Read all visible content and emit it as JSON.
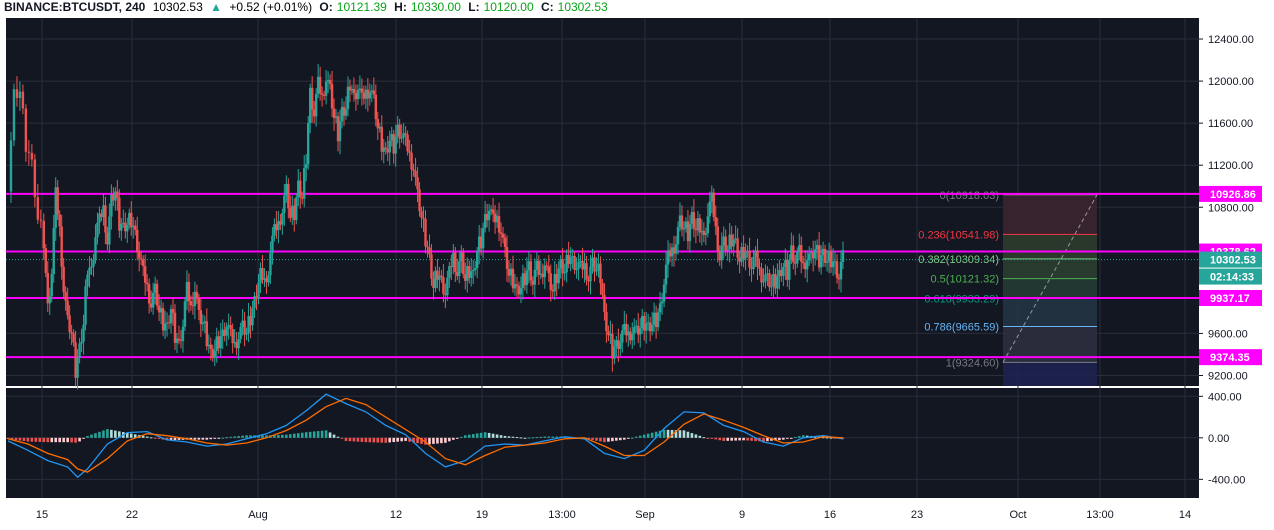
{
  "header": {
    "symbol": "BINANCE:BTCUSDT, 240",
    "last": "10302.53",
    "change_arrow": "▲",
    "change": "+0.52 (+0.01%)",
    "o_label": "O:",
    "o_value": "10121.39",
    "h_label": "H:",
    "h_value": "10330.00",
    "l_label": "L:",
    "l_value": "10120.00",
    "c_label": "C:",
    "c_value": "10302.53"
  },
  "chart_data": {
    "type": "candlestick",
    "price_axis": {
      "ticks": [
        "12400.00",
        "12000.00",
        "11600.00",
        "11200.00",
        "10800.00",
        "9600.00",
        "9200.00"
      ],
      "tick_values": [
        12400,
        12000,
        11600,
        11200,
        10800,
        9600,
        9200
      ],
      "ylim": [
        9100,
        12600
      ]
    },
    "time_axis": {
      "ticks": [
        "15",
        "22",
        "Aug",
        "12",
        "19",
        "13:00",
        "Sep",
        "9",
        "16",
        "23",
        "Oct",
        "13:00",
        "14"
      ]
    },
    "horizontal_levels": [
      {
        "label": "10926.86",
        "value": 10926.86,
        "color": "#ff00ff"
      },
      {
        "label": "10378.62",
        "value": 10378.62,
        "color": "#ff00ff"
      },
      {
        "label": "9937.17",
        "value": 9937.17,
        "color": "#ff00ff"
      },
      {
        "label": "9374.35",
        "value": 9374.35,
        "color": "#ff00ff"
      }
    ],
    "last_price": {
      "label": "10302.53",
      "value": 10302.53,
      "countdown": "02:14:33",
      "color": "#26a69a"
    },
    "fibonacci": [
      {
        "label": "0(10918.03)",
        "value": 10918.03,
        "color": "#787b86"
      },
      {
        "label": "0.236(10541.98)",
        "value": 10541.98,
        "color": "#f23645"
      },
      {
        "label": "0.382(10309.34)",
        "value": 10309.34,
        "color": "#81c784"
      },
      {
        "label": "0.5(10121.32)",
        "value": 10121.32,
        "color": "#4caf50"
      },
      {
        "label": "0.618(9933.29)",
        "value": 9933.29,
        "color": "#089981"
      },
      {
        "label": "0.786(9665.59)",
        "value": 9665.59,
        "color": "#64b5f6"
      },
      {
        "label": "1(9324.60)",
        "value": 9324.6,
        "color": "#787b86"
      }
    ],
    "price_path": [
      [
        0,
        10950
      ],
      [
        6,
        11850
      ],
      [
        12,
        11900
      ],
      [
        18,
        11400
      ],
      [
        24,
        11200
      ],
      [
        30,
        10700
      ],
      [
        36,
        10500
      ],
      [
        40,
        9850
      ],
      [
        44,
        10200
      ],
      [
        48,
        10900
      ],
      [
        52,
        10600
      ],
      [
        56,
        10050
      ],
      [
        60,
        9700
      ],
      [
        64,
        9600
      ],
      [
        68,
        9250
      ],
      [
        72,
        9450
      ],
      [
        76,
        9700
      ],
      [
        80,
        10250
      ],
      [
        84,
        10200
      ],
      [
        88,
        10550
      ],
      [
        92,
        10650
      ],
      [
        96,
        10800
      ],
      [
        100,
        10500
      ],
      [
        104,
        10850
      ],
      [
        108,
        10950
      ],
      [
        112,
        10650
      ],
      [
        116,
        10600
      ],
      [
        120,
        10650
      ],
      [
        124,
        10700
      ],
      [
        128,
        10550
      ],
      [
        132,
        10350
      ],
      [
        136,
        10150
      ],
      [
        140,
        10050
      ],
      [
        144,
        9900
      ],
      [
        148,
        10000
      ],
      [
        152,
        9800
      ],
      [
        156,
        9700
      ],
      [
        160,
        9650
      ],
      [
        164,
        9850
      ],
      [
        168,
        9600
      ],
      [
        172,
        9500
      ],
      [
        176,
        9700
      ],
      [
        180,
        10000
      ],
      [
        184,
        9850
      ],
      [
        188,
        10050
      ],
      [
        192,
        9750
      ],
      [
        196,
        9700
      ],
      [
        200,
        9550
      ],
      [
        204,
        9400
      ],
      [
        208,
        9450
      ],
      [
        212,
        9550
      ],
      [
        216,
        9600
      ],
      [
        220,
        9700
      ],
      [
        224,
        9550
      ],
      [
        228,
        9500
      ],
      [
        232,
        9600
      ],
      [
        236,
        9650
      ],
      [
        240,
        9600
      ],
      [
        244,
        9750
      ],
      [
        248,
        9900
      ],
      [
        252,
        10100
      ],
      [
        256,
        10200
      ],
      [
        260,
        10050
      ],
      [
        264,
        10400
      ],
      [
        268,
        10550
      ],
      [
        272,
        10650
      ],
      [
        276,
        10800
      ],
      [
        280,
        10950
      ],
      [
        284,
        10700
      ],
      [
        288,
        10750
      ],
      [
        292,
        11000
      ],
      [
        296,
        10900
      ],
      [
        300,
        11300
      ],
      [
        304,
        11900
      ],
      [
        308,
        11700
      ],
      [
        312,
        11950
      ],
      [
        316,
        11850
      ],
      [
        320,
        12050
      ],
      [
        324,
        11900
      ],
      [
        328,
        11650
      ],
      [
        332,
        11500
      ],
      [
        336,
        11700
      ],
      [
        340,
        11750
      ],
      [
        344,
        12000
      ],
      [
        348,
        11850
      ],
      [
        352,
        11950
      ],
      [
        356,
        11800
      ],
      [
        360,
        11900
      ],
      [
        364,
        11950
      ],
      [
        368,
        11800
      ],
      [
        372,
        11550
      ],
      [
        376,
        11400
      ],
      [
        380,
        11300
      ],
      [
        384,
        11450
      ],
      [
        388,
        11400
      ],
      [
        392,
        11550
      ],
      [
        396,
        11500
      ],
      [
        400,
        11400
      ],
      [
        404,
        11300
      ],
      [
        408,
        11200
      ],
      [
        412,
        10900
      ],
      [
        416,
        10700
      ],
      [
        420,
        10500
      ],
      [
        424,
        10300
      ],
      [
        428,
        10050
      ],
      [
        432,
        10200
      ],
      [
        436,
        10100
      ],
      [
        440,
        10000
      ],
      [
        444,
        10150
      ],
      [
        448,
        10350
      ],
      [
        452,
        10200
      ],
      [
        456,
        10300
      ],
      [
        460,
        10100
      ],
      [
        464,
        10200
      ],
      [
        468,
        10150
      ],
      [
        472,
        10400
      ],
      [
        476,
        10500
      ],
      [
        480,
        10700
      ],
      [
        484,
        10800
      ],
      [
        488,
        10650
      ],
      [
        492,
        10700
      ],
      [
        496,
        10600
      ],
      [
        500,
        10350
      ],
      [
        504,
        10150
      ],
      [
        508,
        10100
      ],
      [
        512,
        10000
      ],
      [
        516,
        10050
      ],
      [
        520,
        10150
      ],
      [
        524,
        10250
      ],
      [
        528,
        10100
      ],
      [
        532,
        10200
      ],
      [
        536,
        10150
      ],
      [
        540,
        10300
      ],
      [
        544,
        10100
      ],
      [
        548,
        10000
      ],
      [
        552,
        10150
      ],
      [
        556,
        10250
      ],
      [
        560,
        10200
      ],
      [
        564,
        10350
      ],
      [
        568,
        10300
      ],
      [
        572,
        10250
      ],
      [
        576,
        10200
      ],
      [
        580,
        10250
      ],
      [
        584,
        10150
      ],
      [
        588,
        10250
      ],
      [
        592,
        10200
      ],
      [
        596,
        10150
      ],
      [
        600,
        9750
      ],
      [
        604,
        9600
      ],
      [
        608,
        9450
      ],
      [
        612,
        9500
      ],
      [
        616,
        9550
      ],
      [
        620,
        9600
      ],
      [
        624,
        9600
      ],
      [
        628,
        9650
      ],
      [
        632,
        9600
      ],
      [
        636,
        9650
      ],
      [
        640,
        9700
      ],
      [
        644,
        9650
      ],
      [
        648,
        9700
      ],
      [
        652,
        9750
      ],
      [
        656,
        9850
      ],
      [
        660,
        10100
      ],
      [
        664,
        10300
      ],
      [
        668,
        10400
      ],
      [
        672,
        10500
      ],
      [
        676,
        10650
      ],
      [
        680,
        10600
      ],
      [
        684,
        10550
      ],
      [
        688,
        10700
      ],
      [
        692,
        10600
      ],
      [
        696,
        10650
      ],
      [
        700,
        10500
      ],
      [
        704,
        10750
      ],
      [
        708,
        10850
      ],
      [
        712,
        10600
      ],
      [
        716,
        10350
      ],
      [
        720,
        10450
      ],
      [
        724,
        10400
      ],
      [
        728,
        10500
      ],
      [
        732,
        10450
      ],
      [
        736,
        10300
      ],
      [
        740,
        10400
      ],
      [
        744,
        10350
      ],
      [
        748,
        10250
      ],
      [
        752,
        10300
      ],
      [
        756,
        10200
      ],
      [
        760,
        10150
      ],
      [
        764,
        10100
      ],
      [
        768,
        10050
      ],
      [
        772,
        10100
      ],
      [
        776,
        10150
      ],
      [
        780,
        10250
      ],
      [
        784,
        10200
      ],
      [
        788,
        10400
      ],
      [
        792,
        10300
      ],
      [
        796,
        10350
      ],
      [
        800,
        10250
      ],
      [
        804,
        10350
      ],
      [
        808,
        10300
      ],
      [
        812,
        10400
      ],
      [
        816,
        10300
      ],
      [
        820,
        10350
      ],
      [
        824,
        10300
      ],
      [
        828,
        10320
      ],
      [
        832,
        10250
      ],
      [
        836,
        10150
      ],
      [
        840,
        10302.53
      ]
    ],
    "oscillator": {
      "ticks": [
        "400.00",
        "0.00",
        "-400.00"
      ],
      "tick_values": [
        400,
        0,
        -400
      ],
      "ylim": [
        -580,
        480
      ],
      "macd_path": [
        [
          0,
          -30
        ],
        [
          20,
          -120
        ],
        [
          40,
          -220
        ],
        [
          60,
          -280
        ],
        [
          70,
          -380
        ],
        [
          80,
          -300
        ],
        [
          100,
          -60
        ],
        [
          120,
          50
        ],
        [
          140,
          60
        ],
        [
          160,
          -20
        ],
        [
          180,
          -40
        ],
        [
          200,
          -80
        ],
        [
          220,
          -60
        ],
        [
          240,
          -10
        ],
        [
          260,
          40
        ],
        [
          280,
          120
        ],
        [
          300,
          260
        ],
        [
          320,
          420
        ],
        [
          340,
          330
        ],
        [
          360,
          250
        ],
        [
          380,
          120
        ],
        [
          400,
          30
        ],
        [
          420,
          -150
        ],
        [
          440,
          -280
        ],
        [
          460,
          -220
        ],
        [
          480,
          -80
        ],
        [
          500,
          -60
        ],
        [
          520,
          -70
        ],
        [
          540,
          -30
        ],
        [
          560,
          10
        ],
        [
          580,
          -10
        ],
        [
          600,
          -150
        ],
        [
          620,
          -200
        ],
        [
          640,
          -120
        ],
        [
          660,
          90
        ],
        [
          680,
          250
        ],
        [
          700,
          240
        ],
        [
          720,
          120
        ],
        [
          740,
          60
        ],
        [
          760,
          -40
        ],
        [
          780,
          -80
        ],
        [
          800,
          0
        ],
        [
          820,
          20
        ],
        [
          840,
          -10
        ]
      ],
      "signal_path": [
        [
          0,
          -10
        ],
        [
          20,
          -60
        ],
        [
          40,
          -150
        ],
        [
          60,
          -210
        ],
        [
          70,
          -300
        ],
        [
          80,
          -330
        ],
        [
          100,
          -200
        ],
        [
          120,
          -30
        ],
        [
          140,
          40
        ],
        [
          160,
          20
        ],
        [
          180,
          -10
        ],
        [
          200,
          -50
        ],
        [
          220,
          -70
        ],
        [
          240,
          -50
        ],
        [
          260,
          0
        ],
        [
          280,
          70
        ],
        [
          300,
          170
        ],
        [
          320,
          300
        ],
        [
          340,
          380
        ],
        [
          360,
          320
        ],
        [
          380,
          200
        ],
        [
          400,
          80
        ],
        [
          420,
          -40
        ],
        [
          440,
          -200
        ],
        [
          460,
          -260
        ],
        [
          480,
          -170
        ],
        [
          500,
          -90
        ],
        [
          520,
          -70
        ],
        [
          540,
          -50
        ],
        [
          560,
          -10
        ],
        [
          580,
          0
        ],
        [
          600,
          -80
        ],
        [
          620,
          -170
        ],
        [
          640,
          -170
        ],
        [
          660,
          -40
        ],
        [
          680,
          130
        ],
        [
          700,
          230
        ],
        [
          720,
          170
        ],
        [
          740,
          100
        ],
        [
          760,
          20
        ],
        [
          780,
          -50
        ],
        [
          800,
          -40
        ],
        [
          820,
          10
        ],
        [
          840,
          0
        ]
      ]
    }
  }
}
